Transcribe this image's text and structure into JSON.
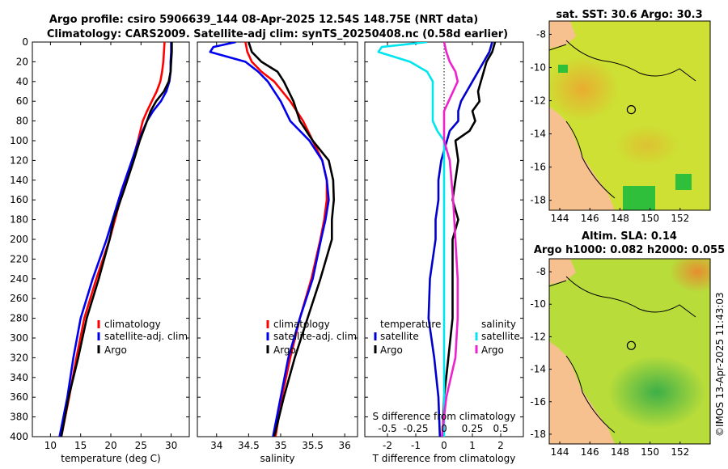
{
  "header": {
    "title_line1": "Argo profile: csiro 5906639_144 08-Apr-2025 12.54S 148.75E (NRT data)",
    "title_line2": "Climatology: CARS2009. Satellite-adj clim: synTS_20250408.nc (0.58d earlier)"
  },
  "colors": {
    "climatology": "#ff0000",
    "satellite": "#0000ee",
    "argo": "#000000",
    "t_diff": "#0000cc",
    "s_sat": "#00e5ee",
    "s_argo": "#ee22cc",
    "land": "#f7c08f"
  },
  "chart_data": [
    {
      "type": "line",
      "name": "temperature",
      "xlabel": "temperature (deg C)",
      "xlim": [
        7,
        33
      ],
      "xticks": [
        10,
        15,
        20,
        25,
        30
      ],
      "ylim": [
        0,
        400
      ],
      "yticks": [
        0,
        20,
        40,
        60,
        80,
        100,
        120,
        140,
        160,
        180,
        200,
        220,
        240,
        260,
        280,
        300,
        320,
        340,
        360,
        380,
        400
      ],
      "legend": [
        "climatology",
        "satellite-adj. clim",
        "Argo"
      ],
      "series": [
        {
          "name": "climatology",
          "color": "#ff0000",
          "depth": [
            0,
            10,
            20,
            30,
            40,
            50,
            60,
            70,
            80,
            100,
            120,
            150,
            180,
            200,
            240,
            280,
            320,
            360,
            400
          ],
          "values": [
            28.9,
            28.8,
            28.7,
            28.5,
            28.2,
            27.6,
            26.8,
            26.0,
            25.3,
            24.5,
            23.6,
            22.0,
            20.7,
            19.8,
            17.6,
            15.6,
            14.3,
            13.1,
            11.8
          ]
        },
        {
          "name": "satellite-adj. clim",
          "color": "#0000ee",
          "depth": [
            0,
            10,
            20,
            30,
            40,
            50,
            60,
            70,
            80,
            100,
            120,
            150,
            180,
            200,
            240,
            280,
            320,
            360,
            400
          ],
          "values": [
            30.0,
            30.0,
            29.9,
            29.9,
            29.7,
            29.2,
            28.3,
            27.0,
            26.0,
            24.6,
            23.5,
            21.8,
            20.3,
            19.3,
            17.0,
            15.0,
            13.8,
            12.8,
            11.5
          ]
        },
        {
          "name": "Argo",
          "color": "#000000",
          "depth": [
            0,
            10,
            20,
            30,
            40,
            50,
            60,
            70,
            80,
            100,
            120,
            150,
            180,
            200,
            240,
            280,
            320,
            360,
            400
          ],
          "values": [
            30.1,
            30.1,
            30.0,
            29.9,
            29.6,
            28.8,
            27.5,
            26.6,
            26.0,
            24.8,
            23.8,
            22.2,
            20.5,
            19.8,
            18.0,
            16.0,
            14.6,
            13.0,
            11.8
          ]
        }
      ]
    },
    {
      "type": "line",
      "name": "salinity",
      "xlabel": "salinity",
      "xlim": [
        33.7,
        36.2
      ],
      "xticks": [
        34,
        34.5,
        35,
        35.5,
        36
      ],
      "ylim": [
        0,
        400
      ],
      "legend": [
        "climatology",
        "satellite-adj. clim",
        "Argo"
      ],
      "series": [
        {
          "name": "climatology",
          "color": "#ff0000",
          "depth": [
            0,
            10,
            20,
            30,
            40,
            60,
            80,
            100,
            120,
            140,
            160,
            180,
            200,
            240,
            280,
            320,
            360,
            400
          ],
          "values": [
            34.45,
            34.48,
            34.55,
            34.7,
            34.9,
            35.15,
            35.35,
            35.5,
            35.65,
            35.72,
            35.72,
            35.68,
            35.62,
            35.48,
            35.3,
            35.15,
            35.02,
            34.92
          ]
        },
        {
          "name": "satellite-adj. clim",
          "color": "#0000ee",
          "depth": [
            0,
            5,
            10,
            20,
            30,
            40,
            60,
            80,
            100,
            120,
            140,
            160,
            180,
            200,
            240,
            280,
            320,
            360,
            400
          ],
          "values": [
            34.3,
            33.95,
            33.9,
            34.45,
            34.65,
            34.8,
            35.0,
            35.15,
            35.45,
            35.65,
            35.72,
            35.75,
            35.7,
            35.63,
            35.5,
            35.3,
            35.12,
            35.0,
            34.88
          ]
        },
        {
          "name": "Argo",
          "color": "#000000",
          "depth": [
            0,
            10,
            20,
            30,
            40,
            60,
            80,
            100,
            120,
            140,
            160,
            180,
            200,
            240,
            280,
            320,
            360,
            400
          ],
          "values": [
            34.5,
            34.55,
            34.7,
            34.95,
            35.05,
            35.2,
            35.3,
            35.5,
            35.75,
            35.82,
            35.83,
            35.8,
            35.8,
            35.62,
            35.42,
            35.22,
            35.05,
            34.9
          ]
        }
      ]
    },
    {
      "type": "line",
      "name": "difference",
      "xlabel": "T difference from climatology",
      "xlim": [
        -2.8,
        2.8
      ],
      "xticks": [
        -2,
        -1,
        0,
        1,
        2
      ],
      "top_xlabel": "S difference from climatology",
      "top_xticks": [
        -0.5,
        -0.25,
        0,
        0.25,
        0.5
      ],
      "top_tick_labels": [
        "-0.5",
        "-0.25",
        "0",
        "0.25",
        "0.5"
      ],
      "s_scale": 4,
      "ylim": [
        0,
        400
      ],
      "legend_titles": [
        "temperature",
        "salinity"
      ],
      "legend_t": [
        "satellite",
        "Argo"
      ],
      "legend_s": [
        "satellite",
        "Argo"
      ],
      "series": [
        {
          "name": "T satellite",
          "color": "#0000cc",
          "depth": [
            0,
            10,
            20,
            30,
            40,
            50,
            60,
            70,
            80,
            90,
            100,
            120,
            140,
            160,
            180,
            200,
            240,
            280,
            320,
            360,
            400
          ],
          "values": [
            1.7,
            1.6,
            1.4,
            1.2,
            1.0,
            0.8,
            0.6,
            0.5,
            0.5,
            0.2,
            0.1,
            -0.1,
            -0.2,
            -0.2,
            -0.3,
            -0.3,
            -0.5,
            -0.55,
            -0.35,
            -0.2,
            -0.15
          ]
        },
        {
          "name": "T Argo",
          "color": "#000000",
          "depth": [
            0,
            10,
            20,
            30,
            40,
            50,
            60,
            70,
            80,
            90,
            100,
            120,
            140,
            160,
            180,
            200,
            240,
            280,
            320,
            360,
            400
          ],
          "values": [
            1.8,
            1.7,
            1.5,
            1.4,
            1.3,
            1.2,
            1.25,
            1.0,
            1.1,
            0.9,
            0.4,
            0.5,
            0.4,
            0.3,
            0.5,
            0.3,
            0.3,
            0.3,
            0.15,
            0.0,
            -0.05
          ]
        },
        {
          "name": "S satellite",
          "color": "#00e5ee",
          "depth": [
            0,
            5,
            10,
            20,
            30,
            40,
            60,
            80,
            90,
            100,
            120,
            160,
            200,
            240,
            280,
            320,
            360,
            400
          ],
          "values": [
            -0.15,
            -0.55,
            -0.58,
            -0.3,
            -0.15,
            -0.1,
            -0.1,
            -0.1,
            -0.06,
            0.0,
            0.0,
            0.0,
            0.0,
            0.0,
            0.0,
            0.0,
            0.0,
            0.0
          ]
        },
        {
          "name": "S Argo",
          "color": "#ee22cc",
          "depth": [
            0,
            10,
            20,
            30,
            40,
            50,
            60,
            70,
            80,
            100,
            120,
            160,
            200,
            240,
            280,
            320,
            360,
            400
          ],
          "values": [
            0.0,
            0.02,
            0.05,
            0.1,
            0.12,
            0.08,
            0.04,
            0.0,
            0.0,
            0.0,
            0.05,
            0.08,
            0.1,
            0.12,
            0.12,
            0.1,
            0.02,
            -0.02
          ]
        }
      ]
    },
    {
      "type": "heatmap",
      "name": "sst-map",
      "title": "sat. SST: 30.6 Argo: 30.3",
      "xlim": [
        143.3,
        154
      ],
      "xticks": [
        144,
        146,
        148,
        150,
        152
      ],
      "ylim": [
        -18.6,
        -7.2
      ],
      "yticks": [
        -8,
        -10,
        -12,
        -14,
        -16,
        -18
      ],
      "argo_position": [
        148.75,
        -12.54
      ]
    },
    {
      "type": "heatmap",
      "name": "sla-map",
      "title_line1": "Altim. SLA: 0.14",
      "title_line2": "Argo h1000: 0.082 h2000: 0.055",
      "xlim": [
        143.3,
        154
      ],
      "xticks": [
        144,
        146,
        148,
        150,
        152
      ],
      "ylim": [
        -18.6,
        -7.2
      ],
      "yticks": [
        -8,
        -10,
        -12,
        -14,
        -16,
        -18
      ],
      "argo_position": [
        148.75,
        -12.54
      ]
    }
  ],
  "footer": {
    "credit": "©IMOS 13-Apr-2025 11:43:03"
  }
}
